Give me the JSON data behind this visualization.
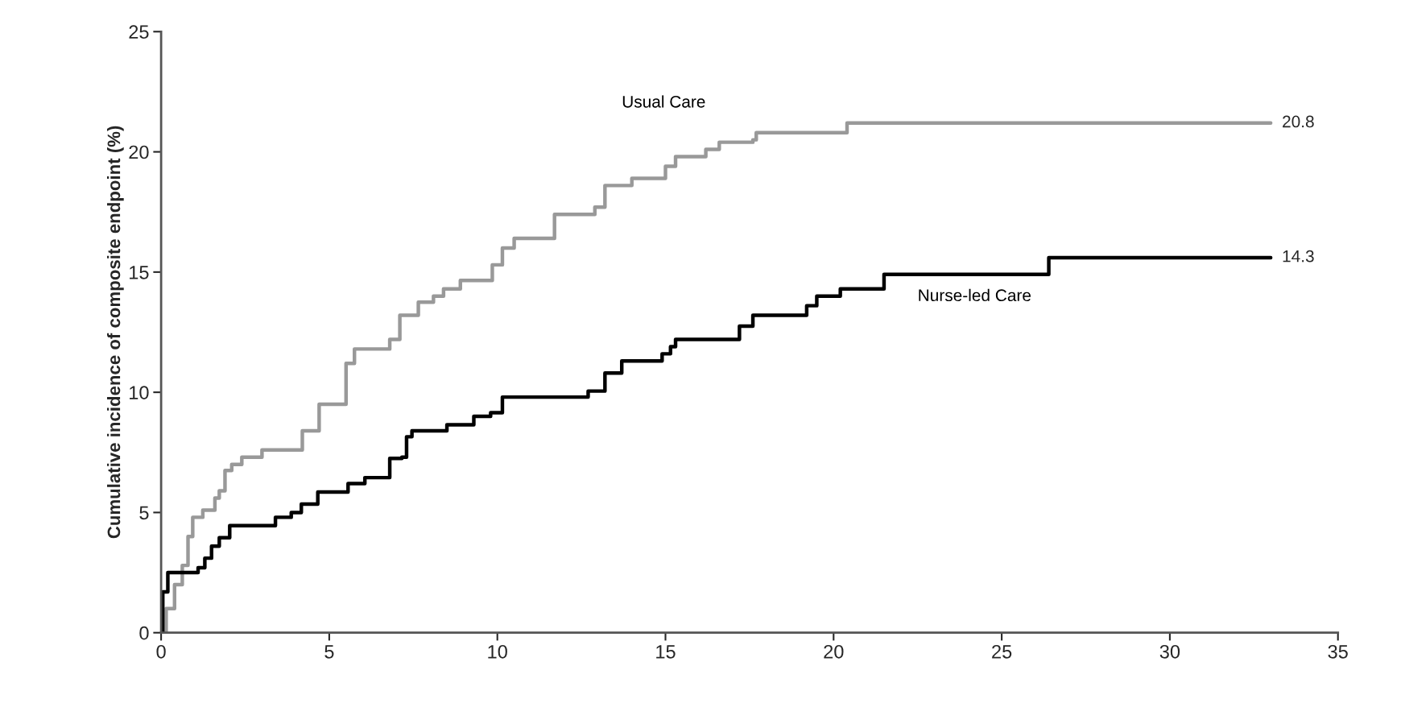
{
  "chart_data": {
    "type": "step",
    "ylabel": "Cumulative incidence of composite endpoint (%)",
    "xlim": [
      0,
      35
    ],
    "xticks": [
      0,
      5,
      10,
      15,
      20,
      25,
      30,
      35
    ],
    "ylim": [
      0,
      25
    ],
    "yticks": [
      0,
      5,
      10,
      15,
      20,
      25
    ],
    "grid": false,
    "legend": false,
    "line_style": "solid",
    "marker": "none",
    "series": [
      {
        "name": "Usual Care",
        "color": "#999999",
        "x": [
          0,
          0.15,
          0.4,
          0.63,
          0.8,
          0.94,
          1.24,
          1.6,
          1.73,
          1.9,
          2.1,
          2.4,
          3.0,
          4.2,
          4.7,
          5.5,
          5.75,
          6.8,
          7.1,
          7.65,
          8.1,
          8.4,
          8.9,
          9.85,
          10.15,
          10.5,
          11.7,
          12.9,
          13.2,
          14.0,
          15.0,
          15.3,
          16.2,
          16.6,
          17.6,
          17.7,
          20.4,
          33
        ],
        "values": [
          0,
          1.0,
          2.0,
          2.8,
          4.0,
          4.8,
          5.1,
          5.6,
          5.9,
          6.75,
          7.0,
          7.3,
          7.6,
          8.4,
          9.5,
          11.2,
          11.8,
          12.2,
          13.2,
          13.75,
          14.0,
          14.3,
          14.65,
          15.3,
          16.0,
          16.4,
          17.4,
          17.7,
          18.6,
          18.9,
          19.4,
          19.8,
          20.1,
          20.4,
          20.5,
          20.8,
          21.2,
          21.2
        ]
      },
      {
        "name": "Nurse-led Care",
        "color": "#000000",
        "x": [
          0,
          0.05,
          0.2,
          1.1,
          1.3,
          1.5,
          1.73,
          2.04,
          3.4,
          3.87,
          4.17,
          4.66,
          5.56,
          6.06,
          6.8,
          7.16,
          7.3,
          7.46,
          8.5,
          9.3,
          9.8,
          10.15,
          12.7,
          13.2,
          13.7,
          14.9,
          15.15,
          15.3,
          17.2,
          17.6,
          19.2,
          19.5,
          20.2,
          21.5,
          26.4,
          33
        ],
        "values": [
          0,
          1.7,
          2.5,
          2.7,
          3.1,
          3.6,
          3.95,
          4.45,
          4.8,
          5.0,
          5.35,
          5.85,
          6.2,
          6.45,
          7.25,
          7.3,
          8.15,
          8.4,
          8.65,
          9.0,
          9.15,
          9.8,
          10.05,
          10.8,
          11.3,
          11.6,
          11.9,
          12.2,
          12.75,
          13.2,
          13.6,
          14.0,
          14.3,
          14.9,
          15.6,
          15.6
        ]
      }
    ],
    "annotations": [
      "20.8",
      "14.3"
    ]
  }
}
